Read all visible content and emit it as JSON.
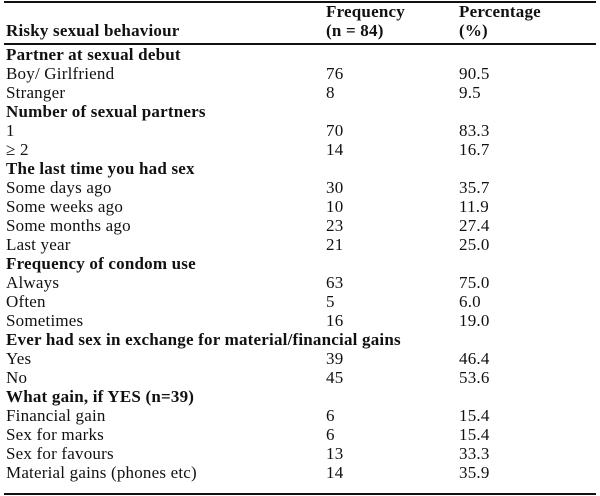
{
  "header": {
    "col1": "Risky sexual behaviour",
    "col2_line1": "Frequency",
    "col2_line2": "(n = 84)",
    "col3_line1": "Percentage",
    "col3_line2": "(%)"
  },
  "sections": [
    {
      "title": "Partner at sexual debut",
      "rows": [
        {
          "label": "Boy/ Girlfriend",
          "freq": "76",
          "pct": "90.5"
        },
        {
          "label": "Stranger",
          "freq": "8",
          "pct": "9.5"
        }
      ]
    },
    {
      "title": "Number of sexual partners",
      "rows": [
        {
          "label": "1",
          "freq": "70",
          "pct": "83.3"
        },
        {
          "label": "≥ 2",
          "freq": "14",
          "pct": "16.7"
        }
      ]
    },
    {
      "title": "The last time you had sex",
      "rows": [
        {
          "label": "Some days ago",
          "freq": "30",
          "pct": "35.7"
        },
        {
          "label": "Some weeks ago",
          "freq": "10",
          "pct": "11.9"
        },
        {
          "label": "Some months ago",
          "freq": "23",
          "pct": "27.4"
        },
        {
          "label": "Last year",
          "freq": "21",
          "pct": "25.0"
        }
      ]
    },
    {
      "title": "Frequency of condom use",
      "rows": [
        {
          "label": "Always",
          "freq": "63",
          "pct": "75.0"
        },
        {
          "label": "Often",
          "freq": "5",
          "pct": "6.0"
        },
        {
          "label": "Sometimes",
          "freq": "16",
          "pct": "19.0"
        }
      ]
    },
    {
      "title": "Ever had sex in exchange for material/financial gains",
      "rows": [
        {
          "label": "Yes",
          "freq": "39",
          "pct": "46.4"
        },
        {
          "label": "No",
          "freq": "45",
          "pct": "53.6"
        }
      ]
    },
    {
      "title": "What gain, if YES (n=39)",
      "rows": [
        {
          "label": "Financial gain",
          "freq": "6",
          "pct": "15.4"
        },
        {
          "label": "Sex for marks",
          "freq": "6",
          "pct": "15.4"
        },
        {
          "label": "Sex for favours",
          "freq": "13",
          "pct": "33.3"
        },
        {
          "label": "Material gains (phones etc)",
          "freq": "14",
          "pct": "35.9"
        }
      ]
    }
  ]
}
